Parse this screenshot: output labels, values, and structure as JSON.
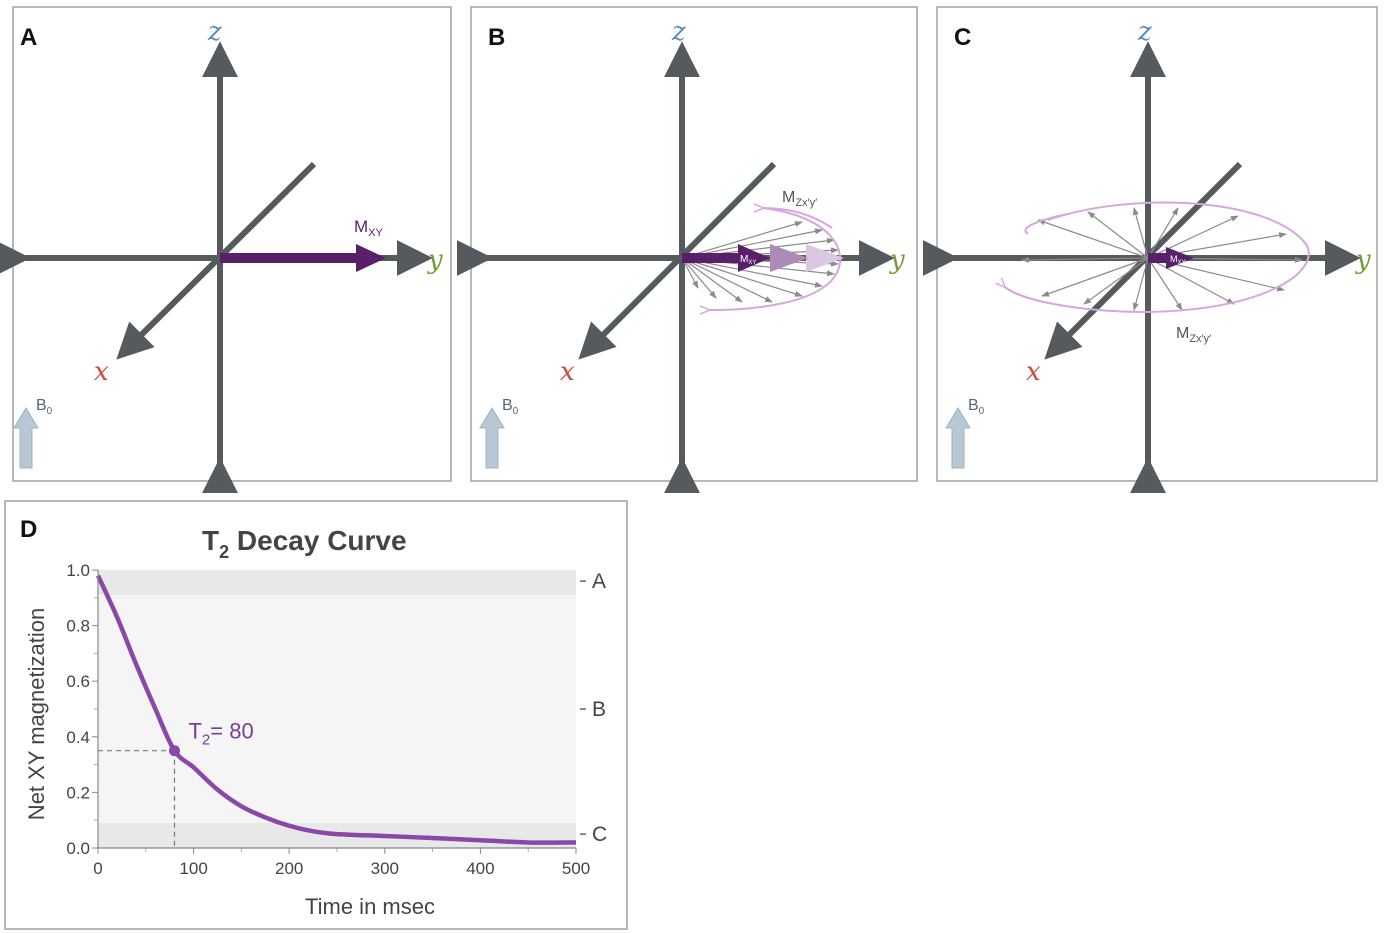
{
  "panels": {
    "a": {
      "label": "A",
      "axis_x": "x",
      "axis_y": "y",
      "axis_z": "z",
      "vector_label": "M",
      "vector_sub": "XY",
      "b0_label": "B",
      "b0_sub": "0"
    },
    "b": {
      "label": "B",
      "axis_x": "x",
      "axis_y": "y",
      "axis_z": "z",
      "vector_label": "M",
      "vector_sub": "XY",
      "fan_label": "M",
      "fan_sub": "Zx′y′",
      "b0_label": "B",
      "b0_sub": "0"
    },
    "c": {
      "label": "C",
      "axis_x": "x",
      "axis_y": "y",
      "axis_z": "z",
      "vector_label": "M",
      "vector_sub": "XY",
      "fan_label": "M",
      "fan_sub": "Zx′y′",
      "b0_label": "B",
      "b0_sub": "0"
    },
    "d": {
      "label": "D",
      "title": "T",
      "title_sub": "2",
      "title_rest": " Decay Curve",
      "ylabel": "Net XY magnetization",
      "xlabel": "Time in msec",
      "annotation_main": "T",
      "annotation_sub": "2",
      "annotation_rest": "= 80"
    }
  },
  "colors": {
    "axis": "#555a5f",
    "purple_dark": "#5a1f6b",
    "purple_curve": "#8a47a8",
    "x_label": "#d04a3c",
    "y_label": "#7a9a3c",
    "z_label": "#5b8fb9",
    "b0_arrow": "#b7c8d4"
  },
  "chart_data": {
    "type": "line",
    "title": "T2 Decay Curve",
    "xlabel": "Time in msec",
    "ylabel": "Net XY magnetization",
    "xlim": [
      0,
      500
    ],
    "ylim": [
      0,
      1.0
    ],
    "xticks": [
      0,
      100,
      200,
      300,
      400,
      500
    ],
    "yticks": [
      0.0,
      0.2,
      0.4,
      0.6,
      0.8,
      1.0
    ],
    "xtick_labels": [
      "0",
      "100",
      "200",
      "300",
      "400",
      "500"
    ],
    "ytick_labels": [
      "0.0",
      "0.2",
      "0.4",
      "0.6",
      "0.8",
      "1.0"
    ],
    "series": [
      {
        "name": "Net XY magnetization",
        "x": [
          0,
          20,
          40,
          60,
          80,
          100,
          125,
          150,
          175,
          200,
          225,
          250,
          300,
          350,
          400,
          450,
          500
        ],
        "y": [
          0.98,
          0.83,
          0.66,
          0.5,
          0.35,
          0.29,
          0.21,
          0.15,
          0.11,
          0.08,
          0.06,
          0.05,
          0.043,
          0.036,
          0.028,
          0.02,
          0.02
        ]
      }
    ],
    "marker": {
      "x": 80,
      "y": 0.35,
      "label": "T2= 80"
    },
    "bands": [
      {
        "label": "A",
        "y_from": 0.91,
        "y_to": 1.0
      },
      {
        "label": "B",
        "y_from": 0.09,
        "y_to": 0.91
      },
      {
        "label": "C",
        "y_from": 0.0,
        "y_to": 0.09
      }
    ],
    "band_label_values": [
      {
        "label": "A",
        "y": 0.96
      },
      {
        "label": "B",
        "y": 0.5
      },
      {
        "label": "C",
        "y": 0.05
      }
    ]
  }
}
